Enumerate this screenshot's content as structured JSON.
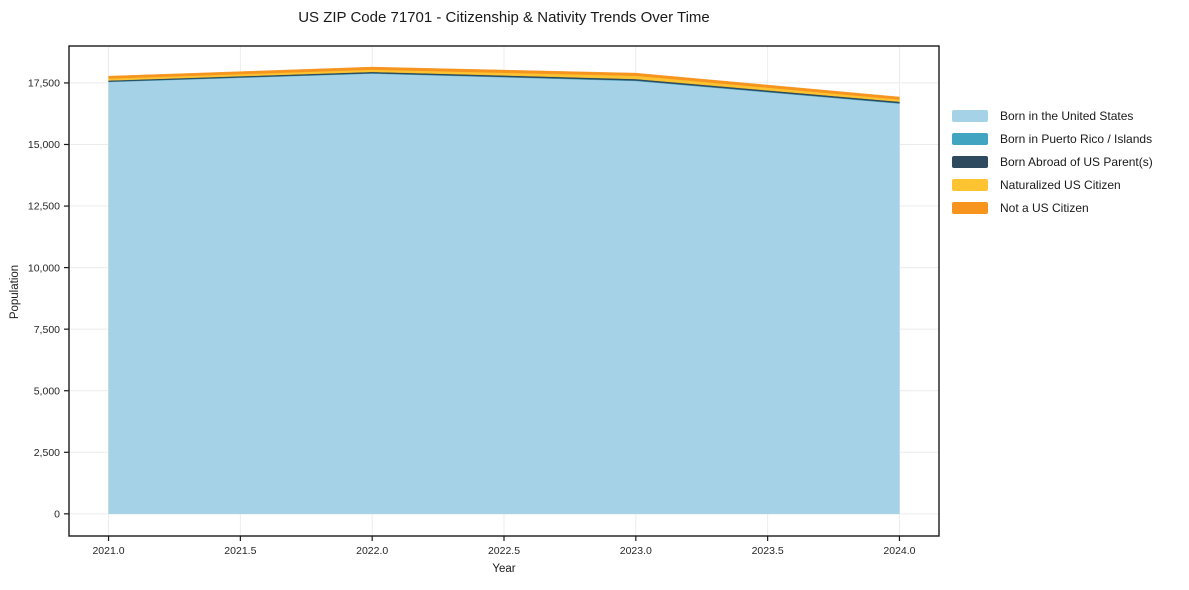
{
  "chart_data": {
    "type": "area",
    "stacked": true,
    "title": "US ZIP Code 71701 - Citizenship & Nativity Trends Over Time",
    "xlabel": "Year",
    "ylabel": "Population",
    "x": [
      2021,
      2022,
      2023,
      2024
    ],
    "series": [
      {
        "name": "Born in the United States",
        "color": "#a6d2e7",
        "values": [
          17540,
          17880,
          17580,
          16660
        ]
      },
      {
        "name": "Born in Puerto Rico / Islands",
        "color": "#41a5c2",
        "values": [
          15,
          15,
          20,
          20
        ]
      },
      {
        "name": "Born Abroad of US Parent(s)",
        "color": "#2d4a5e",
        "values": [
          45,
          55,
          60,
          60
        ]
      },
      {
        "name": "Naturalized US Citizen",
        "color": "#fdc330",
        "values": [
          80,
          90,
          130,
          90
        ]
      },
      {
        "name": "Not a US Citizen",
        "color": "#f6941e",
        "values": [
          95,
          105,
          110,
          100
        ]
      }
    ],
    "xlim": [
      2020.85,
      2024.15
    ],
    "ylim": [
      -900,
      19000
    ],
    "xticks": [
      2021.0,
      2021.5,
      2022.0,
      2022.5,
      2023.0,
      2023.5,
      2024.0
    ],
    "yticks": [
      0,
      2500,
      5000,
      7500,
      10000,
      12500,
      15000,
      17500
    ],
    "grid": true,
    "legend_position": "right",
    "grid_color": "#ececec",
    "spine_color": "#1a1a1a",
    "tick_label_color": "#262626"
  }
}
